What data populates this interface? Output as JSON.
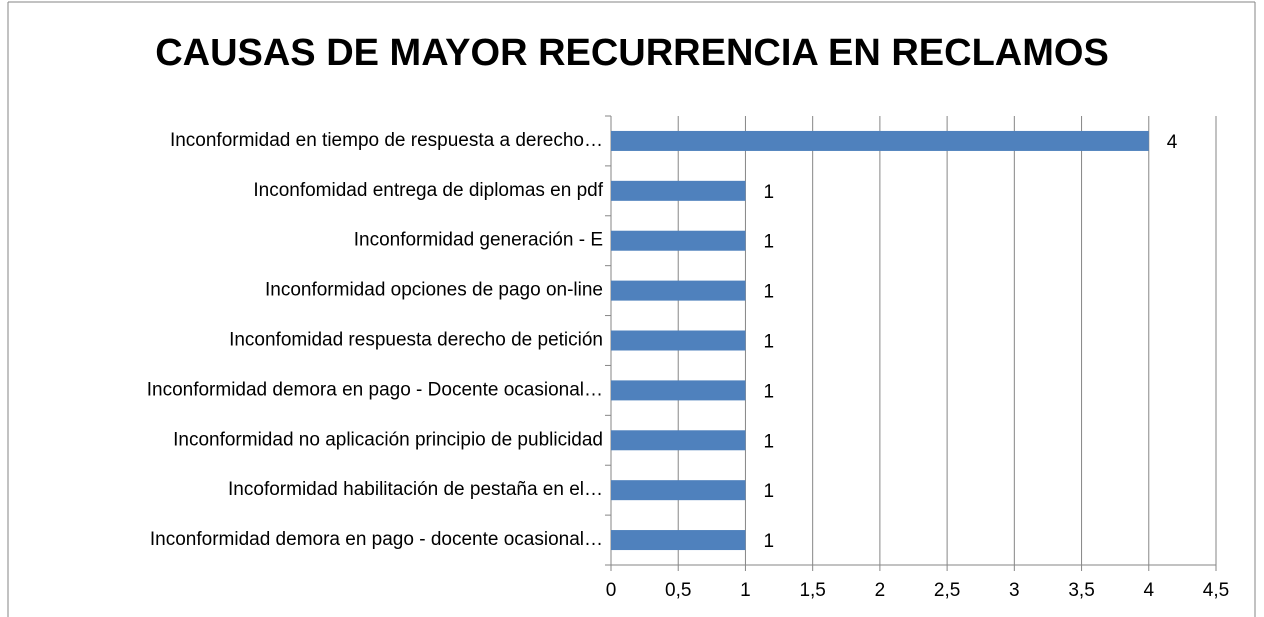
{
  "chart_data": {
    "type": "bar",
    "orientation": "horizontal",
    "title": "CAUSAS DE MAYOR RECURRENCIA EN RECLAMOS",
    "categories": [
      "Inconformidad en tiempo de respuesta a derecho…",
      "Inconfomidad entrega de diplomas en pdf",
      "Inconformidad generación - E",
      "Inconformidad opciones de pago on-line",
      "Inconfomidad respuesta derecho de petición",
      "Inconformidad demora en pago - Docente ocasional…",
      "Inconformidad no aplicación principio de publicidad",
      "Incoformidad habilitación de pestaña en el…",
      "Inconformidad demora en pago - docente ocasional…"
    ],
    "values": [
      4,
      1,
      1,
      1,
      1,
      1,
      1,
      1,
      1
    ],
    "color": "#4f81bd",
    "xlim": [
      0,
      4.5
    ],
    "xticks": [
      0,
      {
        "value": 0.5,
        "label": "0,5"
      },
      1,
      {
        "value": 1.5,
        "label": "1,5"
      },
      2,
      {
        "value": 2.5,
        "label": "2,5"
      },
      3,
      {
        "value": 3.5,
        "label": "3,5"
      },
      4,
      {
        "value": 4.5,
        "label": "4,5"
      }
    ],
    "grid": true
  }
}
